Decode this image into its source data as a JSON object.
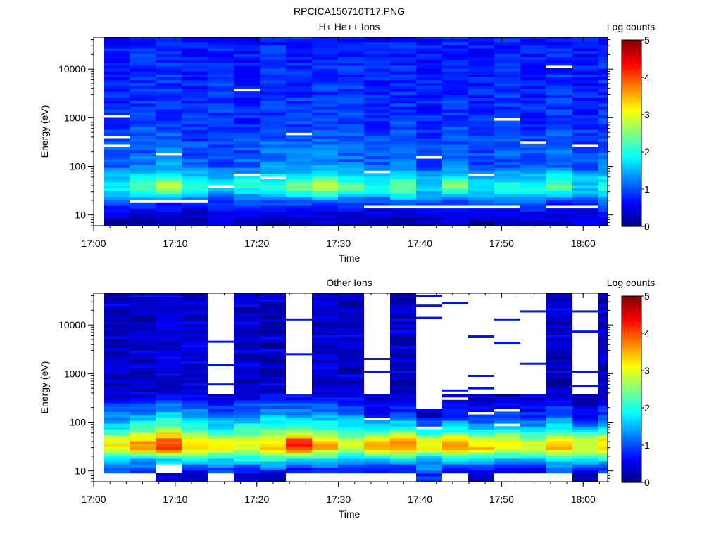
{
  "figure": {
    "title": "RPCICA150710T17.PNG"
  },
  "colormap": {
    "label": "Log counts",
    "min": 0,
    "max": 5,
    "tick_labels": [
      "0",
      "1",
      "2",
      "3",
      "4",
      "5"
    ],
    "stops": [
      "#000080",
      "#0000ff",
      "#0080ff",
      "#00ffff",
      "#80ff80",
      "#ffff00",
      "#ff8000",
      "#ff0000",
      "#800000"
    ]
  },
  "chart_data": [
    {
      "type": "heatmap",
      "title": "H+ He++ Ions",
      "xlabel": "Time",
      "ylabel": "Energy (eV)",
      "yscale": "log",
      "xlim": [
        "17:00",
        "18:03"
      ],
      "ylim": [
        6,
        45000
      ],
      "xticks": [
        "17:00",
        "17:10",
        "17:20",
        "17:30",
        "17:40",
        "17:50",
        "18:00"
      ],
      "yticks": [
        "10",
        "100",
        "1000",
        "10000"
      ],
      "time_bins": [
        "17:01",
        "17:04",
        "17:07",
        "17:10",
        "17:13",
        "17:17",
        "17:20",
        "17:23",
        "17:26",
        "17:30",
        "17:33",
        "17:36",
        "17:39",
        "17:43",
        "17:46",
        "17:49",
        "17:52",
        "17:55",
        "17:58",
        "18:01"
      ],
      "profile_log_counts": [
        {
          "energy_ev": 8,
          "values": [
            0.1,
            0.3,
            0.2,
            0.3,
            0.4,
            0.2,
            0.1,
            0.3,
            0.3,
            0.2,
            0.3,
            0.2,
            0.3,
            0.5,
            0.2,
            0.3,
            0.4,
            0.3,
            0.4,
            0.5
          ]
        },
        {
          "energy_ev": 12,
          "values": [
            0.6,
            0.5,
            0.5,
            0.4,
            0.6,
            0.5,
            0.7,
            0.7,
            0.5,
            0.6,
            0.5,
            0.6,
            0.5,
            0.6,
            0.7,
            0.6,
            0.7,
            0.5,
            0.6,
            0.8
          ]
        },
        {
          "energy_ev": 18,
          "values": [
            0.9,
            1.0,
            0.8,
            0.9,
            0.8,
            0.9,
            1.0,
            1.0,
            0.9,
            0.9,
            0.8,
            1.0,
            0.9,
            0.8,
            0.9,
            1.1,
            0.9,
            0.8,
            1.0,
            1.1
          ]
        },
        {
          "energy_ev": 28,
          "values": [
            1.6,
            1.8,
            2.2,
            1.7,
            1.4,
            1.6,
            1.8,
            2.0,
            2.2,
            1.9,
            1.7,
            2.2,
            1.6,
            2.0,
            1.5,
            1.7,
            1.9,
            1.8,
            1.5,
            1.9
          ]
        },
        {
          "energy_ev": 40,
          "values": [
            1.9,
            2.4,
            3.0,
            2.2,
            1.9,
            2.1,
            2.2,
            2.5,
            3.0,
            2.3,
            1.9,
            2.5,
            1.8,
            2.5,
            1.6,
            2.1,
            1.8,
            2.4,
            1.7,
            1.9
          ]
        },
        {
          "energy_ev": 60,
          "values": [
            1.6,
            1.9,
            2.1,
            1.7,
            1.6,
            1.8,
            1.8,
            1.9,
            2.2,
            1.8,
            1.8,
            2.0,
            1.6,
            1.9,
            1.6,
            1.6,
            1.6,
            1.9,
            1.5,
            1.7
          ]
        },
        {
          "energy_ev": 100,
          "values": [
            1.1,
            1.2,
            1.4,
            1.1,
            1.0,
            1.1,
            1.3,
            1.3,
            1.4,
            1.2,
            1.1,
            1.3,
            1.0,
            1.2,
            1.0,
            1.1,
            1.1,
            1.2,
            1.0,
            1.2
          ]
        },
        {
          "energy_ev": 1000,
          "values": [
            0.8,
            0.9,
            0.9,
            0.8,
            0.9,
            0.8,
            0.9,
            0.9,
            0.9,
            0.9,
            0.8,
            0.9,
            0.8,
            0.9,
            0.8,
            0.9,
            0.8,
            0.9,
            0.8,
            0.9
          ]
        },
        {
          "energy_ev": 30000,
          "values": [
            0.7,
            0.8,
            0.8,
            0.7,
            0.8,
            0.7,
            0.8,
            0.8,
            0.8,
            0.8,
            0.7,
            0.8,
            0.7,
            0.8,
            0.7,
            0.8,
            0.7,
            0.8,
            0.7,
            0.8
          ]
        }
      ],
      "gaps_ev": [
        [
          20,
          1,
          3
        ],
        [
          15,
          10,
          15
        ],
        [
          15,
          17,
          18
        ],
        [
          260,
          0,
          0
        ],
        [
          400,
          0,
          0
        ],
        [
          1100,
          0,
          0
        ],
        [
          180,
          2,
          2
        ],
        [
          3800,
          5,
          5
        ],
        [
          480,
          7,
          7
        ],
        [
          160,
          12,
          12
        ],
        [
          70,
          14,
          14
        ],
        [
          40,
          4,
          4
        ],
        [
          900,
          15,
          15
        ],
        [
          300,
          16,
          16
        ],
        [
          11000,
          17,
          17
        ],
        [
          270,
          18,
          18
        ],
        [
          70,
          5,
          5
        ],
        [
          60,
          6,
          6
        ],
        [
          75,
          10,
          10
        ]
      ],
      "sparse": false
    },
    {
      "type": "heatmap",
      "title": "Other Ions",
      "xlabel": "Time",
      "ylabel": "Energy (eV)",
      "yscale": "log",
      "xlim": [
        "17:00",
        "18:03"
      ],
      "ylim": [
        6,
        45000
      ],
      "xticks": [
        "17:00",
        "17:10",
        "17:20",
        "17:30",
        "17:40",
        "17:50",
        "18:00"
      ],
      "yticks": [
        "10",
        "100",
        "1000",
        "10000"
      ],
      "time_bins": [
        "17:01",
        "17:04",
        "17:07",
        "17:10",
        "17:13",
        "17:17",
        "17:20",
        "17:23",
        "17:26",
        "17:30",
        "17:33",
        "17:36",
        "17:39",
        "17:43",
        "17:46",
        "17:49",
        "17:52",
        "17:55",
        "17:58",
        "18:01"
      ],
      "profile_log_counts": [
        {
          "energy_ev": 8,
          "values": [
            -1,
            -1,
            0.3,
            0.3,
            -1,
            0.4,
            0.3,
            -1,
            -1,
            -1,
            -1,
            -1,
            0.8,
            -1,
            0.3,
            -1,
            -1,
            -1,
            0.2,
            -1
          ]
        },
        {
          "energy_ev": 11,
          "values": [
            1.2,
            0.9,
            -1,
            0.7,
            0.9,
            0.8,
            1.0,
            0.6,
            0.8,
            0.9,
            0.7,
            0.6,
            1.2,
            0.8,
            0.7,
            0.6,
            0.5,
            1.0,
            0.7,
            0.8
          ]
        },
        {
          "energy_ev": 18,
          "values": [
            1.8,
            1.6,
            1.7,
            1.9,
            1.8,
            2.0,
            2.2,
            1.8,
            1.9,
            1.7,
            1.8,
            2.0,
            1.6,
            1.9,
            1.8,
            1.7,
            1.6,
            1.9,
            1.8,
            1.9
          ]
        },
        {
          "energy_ev": 30,
          "values": [
            3.2,
            3.8,
            4.3,
            3.6,
            3.3,
            3.0,
            3.3,
            4.2,
            3.6,
            3.0,
            3.5,
            3.7,
            3.2,
            3.8,
            3.4,
            3.3,
            3.0,
            3.4,
            3.1,
            3.5
          ]
        },
        {
          "energy_ev": 45,
          "values": [
            3.0,
            3.4,
            3.8,
            3.2,
            3.0,
            2.9,
            3.2,
            3.9,
            3.3,
            2.8,
            3.2,
            3.4,
            3.0,
            3.3,
            2.9,
            3.0,
            2.7,
            3.1,
            2.9,
            3.2
          ]
        },
        {
          "energy_ev": 70,
          "values": [
            1.9,
            2.4,
            2.7,
            2.3,
            2.0,
            2.2,
            2.4,
            2.5,
            2.3,
            2.1,
            2.0,
            2.3,
            1.6,
            2.0,
            1.8,
            2.0,
            1.7,
            2.1,
            1.6,
            1.9
          ]
        },
        {
          "energy_ev": 130,
          "values": [
            1.3,
            1.5,
            1.8,
            1.5,
            1.2,
            1.4,
            1.6,
            1.5,
            1.5,
            1.3,
            0.8,
            1.1,
            0.4,
            0.9,
            0.8,
            1.0,
            0.8,
            1.2,
            0.6,
            1.0
          ]
        },
        {
          "energy_ev": 300,
          "values": [
            0.6,
            0.7,
            0.8,
            0.7,
            0.5,
            0.7,
            0.8,
            0.7,
            0.7,
            0.6,
            0.3,
            0.5,
            -1,
            0.4,
            0.4,
            0.4,
            0.4,
            0.6,
            0.3,
            0.5
          ]
        },
        {
          "energy_ev": 420,
          "values": [
            0.3,
            0.3,
            0.4,
            0.4,
            -1,
            0.3,
            0.3,
            -1,
            0.4,
            0.3,
            -1,
            0.3,
            -1,
            -1,
            -1,
            -1,
            -1,
            0.3,
            -1,
            0.3
          ]
        }
      ],
      "gaps_ev": [
        [
          80,
          12,
          12
        ],
        [
          110,
          10,
          10
        ],
        [
          150,
          14,
          14
        ],
        [
          95,
          15,
          15
        ],
        [
          300,
          13,
          13
        ],
        [
          180,
          15,
          15
        ]
      ],
      "sparse_lines_ev": [
        [
          26000,
          0
        ],
        [
          5500,
          0
        ],
        [
          400,
          1
        ],
        [
          1400,
          1
        ],
        [
          2800,
          1
        ],
        [
          40000,
          1
        ],
        [
          40000,
          2
        ],
        [
          2100,
          2
        ],
        [
          950,
          2
        ],
        [
          600,
          3
        ],
        [
          1700,
          3
        ],
        [
          3700,
          3
        ],
        [
          11000,
          3
        ],
        [
          600,
          4
        ],
        [
          1500,
          4
        ],
        [
          4500,
          4
        ],
        [
          1500,
          5
        ],
        [
          2800,
          5
        ],
        [
          11000,
          5
        ],
        [
          25000,
          5
        ],
        [
          600,
          6
        ],
        [
          3000,
          6
        ],
        [
          5400,
          6
        ],
        [
          32000,
          6
        ],
        [
          2500,
          7
        ],
        [
          13000,
          7
        ],
        [
          1300,
          8
        ],
        [
          5800,
          8
        ],
        [
          900,
          9
        ],
        [
          6000,
          9
        ],
        [
          2000,
          10
        ],
        [
          1100,
          10
        ],
        [
          220,
          10
        ],
        [
          1100,
          11
        ],
        [
          3500,
          11
        ],
        [
          7500,
          11
        ],
        [
          13000,
          11
        ],
        [
          25000,
          12
        ],
        [
          14000,
          12
        ],
        [
          40000,
          12
        ],
        [
          450,
          13
        ],
        [
          28000,
          13
        ],
        [
          500,
          14
        ],
        [
          5800,
          14
        ],
        [
          900,
          14
        ],
        [
          13000,
          15
        ],
        [
          4300,
          15
        ],
        [
          1600,
          16
        ],
        [
          19000,
          16
        ],
        [
          6000,
          17
        ],
        [
          1100,
          17
        ],
        [
          21000,
          17
        ],
        [
          550,
          18
        ],
        [
          19000,
          18
        ],
        [
          1100,
          18
        ],
        [
          7300,
          18
        ],
        [
          19000,
          19
        ]
      ],
      "sparse": true
    }
  ]
}
